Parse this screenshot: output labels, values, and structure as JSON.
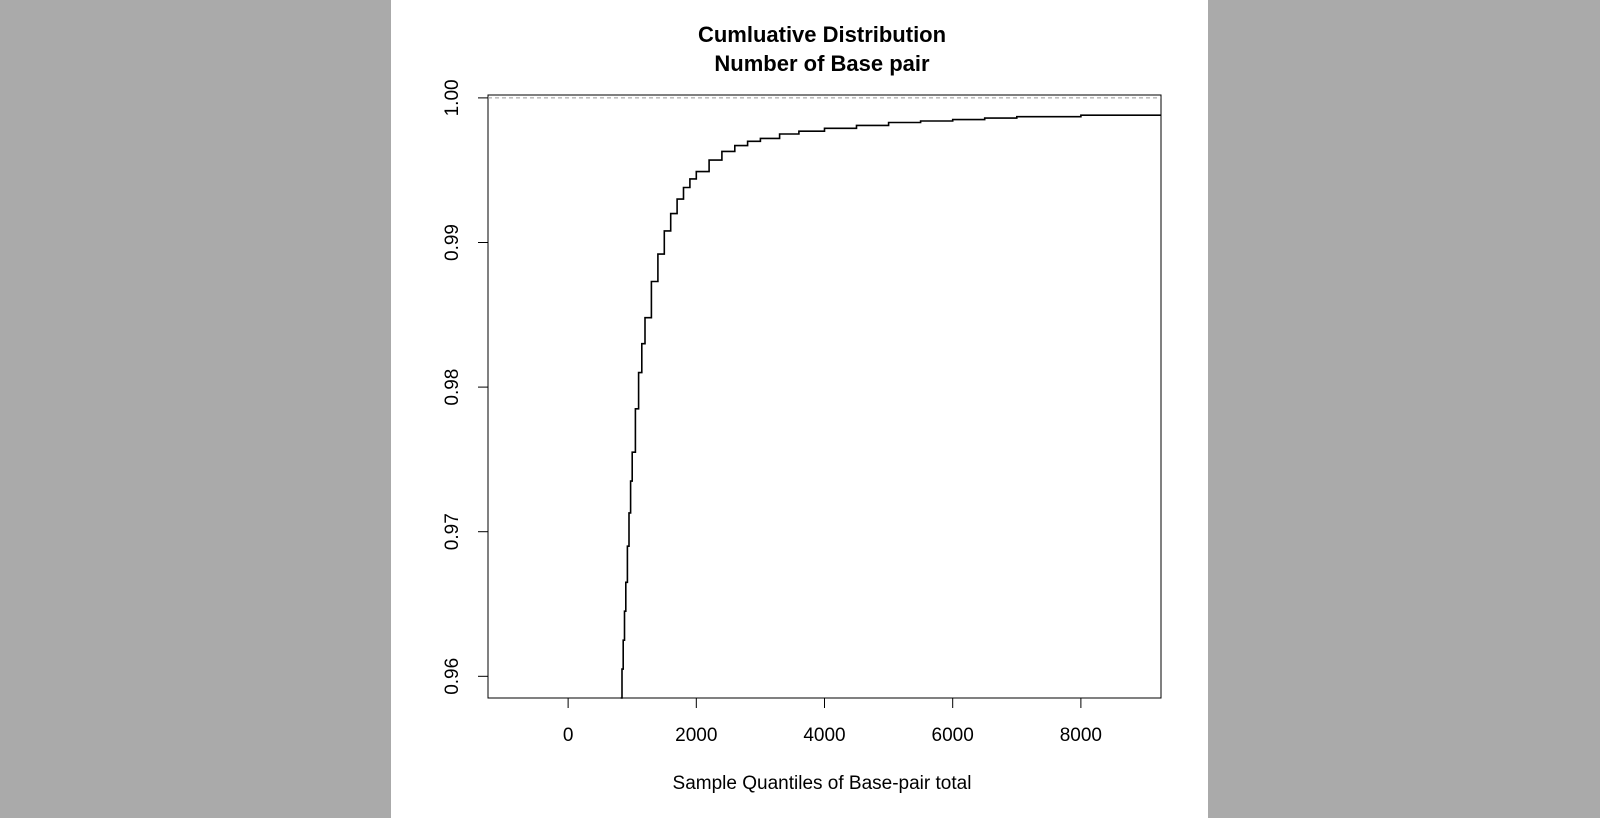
{
  "colors": {
    "viewer_background": "#aaaaaa",
    "page_background": "#ffffff",
    "ink": "#000000",
    "reference_line": "#999999"
  },
  "chart_data": {
    "type": "line",
    "title": "Cumluative Distribution",
    "subtitle": "Number of Base pair",
    "xlabel": "Sample Quantiles of Base-pair total",
    "ylabel": "",
    "xlim": [
      -1250,
      9250
    ],
    "ylim": [
      0.9585,
      1.0002
    ],
    "x_ticks": [
      0,
      2000,
      4000,
      6000,
      8000
    ],
    "x_tick_labels": [
      "0",
      "2000",
      "4000",
      "6000",
      "8000"
    ],
    "y_ticks": [
      0.96,
      0.97,
      0.98,
      0.99,
      1.0
    ],
    "y_tick_labels": [
      "0.96",
      "0.97",
      "0.98",
      "0.99",
      "1.00"
    ],
    "grid": false,
    "reference_lines": [
      {
        "axis": "y",
        "value": 1.0,
        "style": "dashed"
      }
    ],
    "series": [
      {
        "step": true,
        "x": [
          820,
          840,
          860,
          880,
          900,
          925,
          950,
          975,
          1000,
          1050,
          1100,
          1150,
          1200,
          1300,
          1400,
          1500,
          1600,
          1700,
          1800,
          1900,
          2000,
          2200,
          2400,
          2600,
          2800,
          3000,
          3300,
          3600,
          4000,
          4500,
          5000,
          5500,
          6000,
          6500,
          7000,
          8000,
          9250
        ],
        "y": [
          0.9585,
          0.9605,
          0.9625,
          0.9645,
          0.9665,
          0.969,
          0.9713,
          0.9735,
          0.9755,
          0.9785,
          0.981,
          0.983,
          0.9848,
          0.9873,
          0.9892,
          0.9908,
          0.992,
          0.993,
          0.9938,
          0.9944,
          0.9949,
          0.9957,
          0.9963,
          0.9967,
          0.997,
          0.9972,
          0.9975,
          0.9977,
          0.9979,
          0.9981,
          0.9983,
          0.9984,
          0.9985,
          0.9986,
          0.9987,
          0.9988,
          0.9988
        ]
      }
    ]
  }
}
